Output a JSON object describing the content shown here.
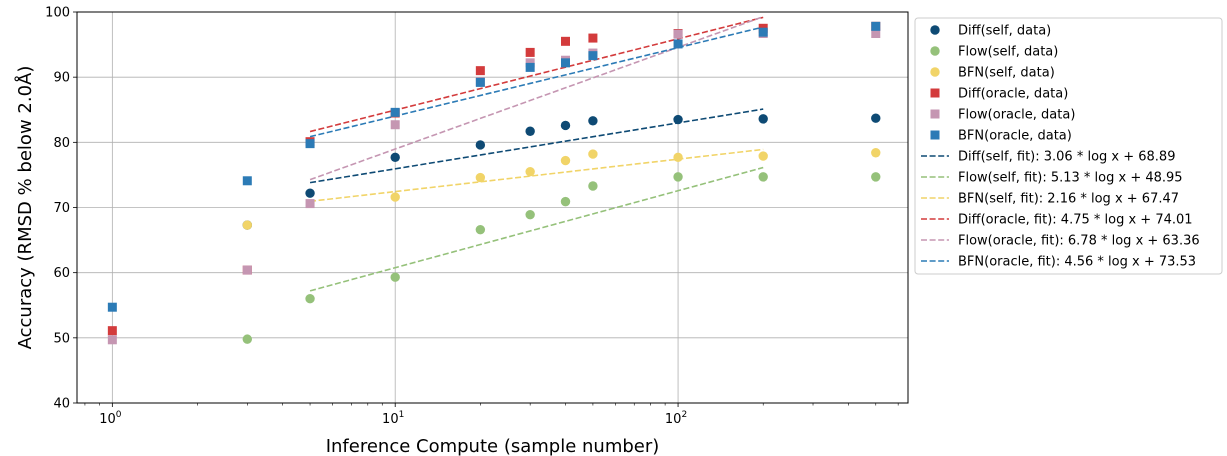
{
  "chart_data": {
    "type": "scatter",
    "xscale": "log",
    "xlabel": "Inference Compute (sample number)",
    "ylabel": "Accuracy (RMSD % below 2.0Å)",
    "xlim": [
      0.75,
      650
    ],
    "ylim": [
      40,
      100
    ],
    "yticks": [
      40,
      50,
      60,
      70,
      80,
      90,
      100
    ],
    "xticks": [
      {
        "value": 1,
        "base": "10",
        "exp": "0"
      },
      {
        "value": 10,
        "base": "10",
        "exp": "1"
      },
      {
        "value": 100,
        "base": "10",
        "exp": "2"
      }
    ],
    "grid": true,
    "legend_position": "outside-right",
    "series": [
      {
        "name": "Diff(self, data)",
        "color": "#0e4a74",
        "marker": "circle",
        "x": [
          3,
          5,
          10,
          20,
          30,
          40,
          50,
          100,
          200,
          500
        ],
        "y": [
          67.3,
          72.2,
          77.7,
          79.6,
          81.7,
          82.6,
          83.3,
          83.5,
          83.6,
          83.7
        ]
      },
      {
        "name": "Flow(self, data)",
        "color": "#95c17a",
        "marker": "circle",
        "x": [
          3,
          5,
          10,
          20,
          30,
          40,
          50,
          100,
          200,
          500
        ],
        "y": [
          49.8,
          56.0,
          59.3,
          66.6,
          68.9,
          70.9,
          73.3,
          74.7,
          74.7,
          74.7
        ]
      },
      {
        "name": "BFN(self, data)",
        "color": "#f1d468",
        "marker": "circle",
        "x": [
          3,
          10,
          20,
          30,
          40,
          50,
          100,
          200,
          500
        ],
        "y": [
          67.3,
          71.6,
          74.6,
          75.5,
          77.2,
          78.2,
          77.7,
          77.9,
          78.4
        ]
      },
      {
        "name": "Diff(oracle, data)",
        "color": "#d33b3c",
        "marker": "square",
        "x": [
          1,
          3,
          5,
          10,
          20,
          30,
          40,
          50,
          100,
          200,
          500
        ],
        "y": [
          51.1,
          60.4,
          80.1,
          84.5,
          91.0,
          93.8,
          95.5,
          96.0,
          96.7,
          97.5,
          97.8
        ]
      },
      {
        "name": "Flow(oracle, data)",
        "color": "#c596b2",
        "marker": "square",
        "x": [
          1,
          3,
          5,
          10,
          20,
          30,
          40,
          50,
          100,
          200,
          500
        ],
        "y": [
          49.7,
          60.4,
          70.6,
          82.7,
          89.3,
          92.2,
          92.6,
          93.7,
          96.6,
          96.7,
          96.7
        ]
      },
      {
        "name": "BFN(oracle, data)",
        "color": "#2c7bb6",
        "marker": "square",
        "x": [
          1,
          3,
          5,
          10,
          20,
          30,
          40,
          50,
          100,
          200,
          500
        ],
        "y": [
          54.7,
          74.1,
          79.8,
          84.6,
          89.2,
          91.5,
          92.2,
          93.3,
          95.1,
          96.9,
          97.8
        ]
      }
    ],
    "fits": [
      {
        "name": "Diff(self, fit): 3.06 * log x + 68.89",
        "color": "#0e4a74",
        "a": 3.06,
        "b": 68.89,
        "x_range": [
          5,
          200
        ]
      },
      {
        "name": "Flow(self, fit): 5.13 * log x + 48.95",
        "color": "#95c17a",
        "a": 5.13,
        "b": 48.95,
        "x_range": [
          5,
          200
        ]
      },
      {
        "name": "BFN(self, fit): 2.16 * log x + 67.47",
        "color": "#f1d468",
        "a": 2.16,
        "b": 67.47,
        "x_range": [
          5,
          200
        ]
      },
      {
        "name": "Diff(oracle, fit): 4.75 * log x + 74.01",
        "color": "#d33b3c",
        "a": 4.75,
        "b": 74.01,
        "x_range": [
          5,
          200
        ]
      },
      {
        "name": "Flow(oracle, fit): 6.78 * log x + 63.36",
        "color": "#c596b2",
        "a": 6.78,
        "b": 63.36,
        "x_range": [
          5,
          200
        ]
      },
      {
        "name": "BFN(oracle, fit): 4.56 * log x + 73.53",
        "color": "#2c7bb6",
        "a": 4.56,
        "b": 73.53,
        "x_range": [
          5,
          200
        ]
      }
    ]
  }
}
